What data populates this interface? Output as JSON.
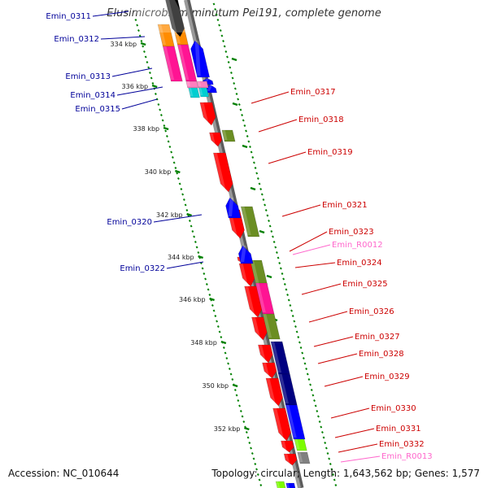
{
  "title": "Elusimicrobium minutum Pei191, complete genome",
  "footer": {
    "accession": "Accession: NC_010644",
    "summary": "Topology: circular; Length: 1,643,562 bp; Genes: 1,577"
  },
  "colors": {
    "cds_red": "#ff0000",
    "cds_blue": "#0000ff",
    "cog_olive": "#6b8e23",
    "cog_pink": "#ff1493",
    "cog_orange": "#ff8c00",
    "cog_navy": "#000080",
    "cog_lime": "#7cfc00",
    "cog_gray": "#808080",
    "cog_cyan": "#00ced1",
    "trna_pink": "#ff7fbf",
    "backbone": "#999999",
    "ticks": "#008000",
    "label_blue": "#000099",
    "label_red": "#cc0000",
    "label_pink": "#ff66cc"
  },
  "kbp_marks": [
    {
      "text": "334 kbp"
    },
    {
      "text": "336 kbp"
    },
    {
      "text": "338 kbp"
    },
    {
      "text": "340 kbp"
    },
    {
      "text": "342 kbp"
    },
    {
      "text": "344 kbp"
    },
    {
      "text": "346 kbp"
    },
    {
      "text": "348 kbp"
    },
    {
      "text": "350 kbp"
    },
    {
      "text": "352 kbp"
    }
  ],
  "labels_left": [
    {
      "text": "Emin_0311"
    },
    {
      "text": "Emin_0312"
    },
    {
      "text": "Emin_0313"
    },
    {
      "text": "Emin_0314"
    },
    {
      "text": "Emin_0315"
    },
    {
      "text": "Emin_0320"
    },
    {
      "text": "Emin_0322"
    }
  ],
  "labels_right": [
    {
      "text": "Emin_0317"
    },
    {
      "text": "Emin_0318"
    },
    {
      "text": "Emin_0319"
    },
    {
      "text": "Emin_0321"
    },
    {
      "text": "Emin_0323"
    },
    {
      "text": "Emin_R0012"
    },
    {
      "text": "Emin_0324"
    },
    {
      "text": "Emin_0325"
    },
    {
      "text": "Emin_0326"
    },
    {
      "text": "Emin_0327"
    },
    {
      "text": "Emin_0328"
    },
    {
      "text": "Emin_0329"
    },
    {
      "text": "Emin_0330"
    },
    {
      "text": "Emin_0331"
    },
    {
      "text": "Emin_0332"
    },
    {
      "text": "Emin_R0013"
    }
  ]
}
